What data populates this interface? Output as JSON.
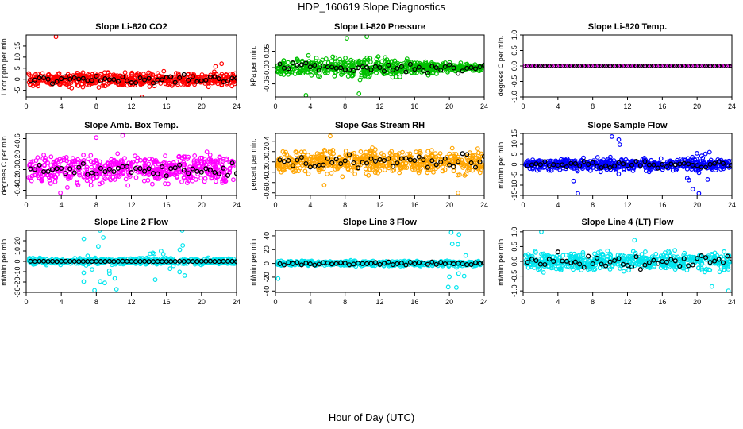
{
  "main_title": "HDP_160619  Slope Diagnostics",
  "x_label": "Hour of Day (UTC)",
  "chart_data": [
    {
      "type": "scatter",
      "title": "Slope Li-820 CO2",
      "ylabel": "Licor ppm per min.",
      "color": "#ff0000",
      "xlim": [
        0,
        24
      ],
      "ylim": [
        -8,
        20
      ],
      "yticks": [
        -5,
        0,
        5,
        10,
        15
      ],
      "xticks": [
        0,
        4,
        8,
        12,
        16,
        20,
        24
      ],
      "amp": 4.5,
      "outliers": [
        [
          3.4,
          19.2
        ],
        [
          21.6,
          5.8
        ],
        [
          22.3,
          7.0
        ],
        [
          13.2,
          -8
        ]
      ],
      "black_amp": 3.0
    },
    {
      "type": "scatter",
      "title": "Slope Li-820 Pressure",
      "ylabel": "kPa per min.",
      "color": "#00c000",
      "xlim": [
        0,
        24
      ],
      "ylim": [
        -0.09,
        0.1
      ],
      "yticks": [
        -0.05,
        0.0,
        0.05
      ],
      "xticks": [
        0,
        4,
        8,
        12,
        16,
        20,
        24
      ],
      "amp": 0.04,
      "outliers": [
        [
          8.2,
          0.09
        ],
        [
          10.5,
          0.095
        ],
        [
          3.5,
          -0.085
        ],
        [
          9.6,
          -0.08
        ]
      ],
      "black_amp": 0.02,
      "taper": true
    },
    {
      "type": "scatter",
      "title": "Slope Li-820 Temp.",
      "ylabel": "degrees C per min.",
      "color": "#ff00ff",
      "xlim": [
        0,
        24
      ],
      "ylim": [
        -1.0,
        1.0
      ],
      "yticks": [
        -1.0,
        -0.5,
        0.0,
        0.5,
        1.0
      ],
      "xticks": [
        0,
        4,
        8,
        12,
        16,
        20,
        24
      ],
      "amp": 0.0,
      "outliers": [],
      "black_amp": 0.0,
      "flat": true
    },
    {
      "type": "scatter",
      "title": "Slope Amb. Box Temp.",
      "ylabel": "degrees C per min.",
      "color": "#ff00ff",
      "xlim": [
        0,
        24
      ],
      "ylim": [
        -0.5,
        0.7
      ],
      "yticks": [
        -0.4,
        -0.2,
        0.0,
        0.2,
        0.4,
        0.6
      ],
      "xticks": [
        0,
        4,
        8,
        12,
        16,
        20,
        24
      ],
      "amp": 0.38,
      "outliers": [
        [
          8.0,
          0.62
        ],
        [
          11.0,
          0.66
        ],
        [
          3.9,
          -0.45
        ]
      ],
      "black_amp": 0.18
    },
    {
      "type": "scatter",
      "title": "Slope Gas Stream RH",
      "ylabel": "percent per min.",
      "color": "#ffa500",
      "xlim": [
        0,
        24
      ],
      "ylim": [
        -0.65,
        0.55
      ],
      "yticks": [
        -0.6,
        -0.4,
        -0.2,
        0.0,
        0.2,
        0.4
      ],
      "xticks": [
        0,
        4,
        8,
        12,
        16,
        20,
        24
      ],
      "amp": 0.32,
      "outliers": [
        [
          6.3,
          0.5
        ],
        [
          21.0,
          -0.6
        ],
        [
          5.6,
          -0.45
        ]
      ],
      "black_amp": 0.2
    },
    {
      "type": "scatter",
      "title": "Slope Sample Flow",
      "ylabel": "ml/min per min.",
      "color": "#0000ff",
      "xlim": [
        0,
        24
      ],
      "ylim": [
        -15,
        15
      ],
      "yticks": [
        -15,
        -10,
        -5,
        0,
        5,
        10,
        15
      ],
      "xticks": [
        0,
        4,
        8,
        12,
        16,
        20,
        24
      ],
      "amp": 4.0,
      "outliers": [
        [
          10.2,
          13.5
        ],
        [
          11.0,
          12.0
        ],
        [
          19.5,
          -12
        ],
        [
          20.2,
          -14
        ],
        [
          6.3,
          -14
        ],
        [
          5.8,
          -8
        ]
      ],
      "black_amp": 2.5,
      "bursts": [
        [
          9.5,
          11.5,
          10
        ],
        [
          17.5,
          21.5,
          9
        ]
      ]
    },
    {
      "type": "scatter",
      "title": "Slope Line 2 Flow",
      "ylabel": "ml/min per min.",
      "color": "#00e5ee",
      "xlim": [
        0,
        24
      ],
      "ylim": [
        -30,
        30
      ],
      "yticks": [
        -30,
        -20,
        -10,
        0,
        10,
        20
      ],
      "xticks": [
        0,
        4,
        8,
        12,
        16,
        20,
        24
      ],
      "amp": 4.0,
      "outliers": [
        [
          8.4,
          30
        ],
        [
          17.8,
          30
        ],
        [
          7.8,
          -28
        ],
        [
          10.3,
          -27
        ]
      ],
      "black_amp": 0.3,
      "bursts": [
        [
          6.5,
          11,
          24
        ],
        [
          14,
          19,
          18
        ]
      ]
    },
    {
      "type": "scatter",
      "title": "Slope Line 3 Flow",
      "ylabel": "ml/min per min.",
      "color": "#00e5ee",
      "xlim": [
        0,
        24
      ],
      "ylim": [
        -42,
        48
      ],
      "yticks": [
        -40,
        -20,
        0,
        20,
        40
      ],
      "xticks": [
        0,
        4,
        8,
        12,
        16,
        20,
        24
      ],
      "amp": 5.0,
      "outliers": [
        [
          20.2,
          45
        ],
        [
          21.1,
          42
        ],
        [
          20.8,
          -35
        ],
        [
          0.3,
          -22
        ]
      ],
      "black_amp": 3.5,
      "bursts": [
        [
          19.5,
          22,
          35
        ]
      ]
    },
    {
      "type": "scatter",
      "title": "Slope Line 4 (LT) Flow",
      "ylabel": "ml/min per min.",
      "color": "#00e5ee",
      "xlim": [
        0,
        24
      ],
      "ylim": [
        -1.05,
        1.05
      ],
      "yticks": [
        -1.0,
        -0.5,
        0.0,
        0.5,
        1.0
      ],
      "xticks": [
        0,
        4,
        8,
        12,
        16,
        20,
        24
      ],
      "amp": 0.42,
      "outliers": [
        [
          2.1,
          1.0
        ],
        [
          23.6,
          -1.0
        ],
        [
          21.7,
          -0.85
        ],
        [
          12.8,
          0.72
        ]
      ],
      "black_amp": 0.35
    }
  ]
}
